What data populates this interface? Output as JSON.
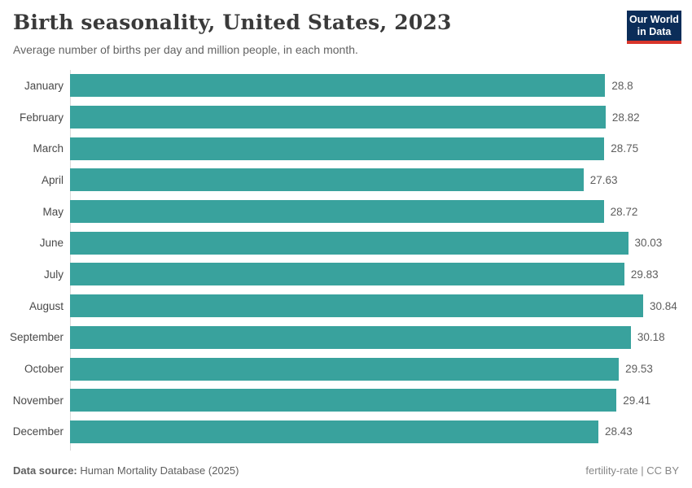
{
  "header": {
    "title": "Birth seasonality, United States, 2023",
    "subtitle": "Average number of births per day and million people, in each month.",
    "logo": {
      "line1": "Our World",
      "line2": "in Data"
    }
  },
  "chart_data": {
    "type": "bar",
    "orientation": "horizontal",
    "title": "Birth seasonality, United States, 2023",
    "subtitle": "Average number of births per day and million people, in each month.",
    "categories": [
      "January",
      "February",
      "March",
      "April",
      "May",
      "June",
      "July",
      "August",
      "September",
      "October",
      "November",
      "December"
    ],
    "values": [
      28.8,
      28.82,
      28.75,
      27.63,
      28.72,
      30.03,
      29.83,
      30.84,
      30.18,
      29.53,
      29.41,
      28.43
    ],
    "value_labels": [
      "28.8",
      "28.82",
      "28.75",
      "27.63",
      "28.72",
      "30.03",
      "29.83",
      "30.84",
      "30.18",
      "29.53",
      "29.41",
      "28.43"
    ],
    "xlabel": "",
    "ylabel": "",
    "xlim": [
      0,
      32.9
    ],
    "grid": false,
    "legend": false,
    "bar_color": "#39a29d",
    "axis_line_color": "#dadada"
  },
  "colors": {
    "bar": "#39a29d",
    "axis_line": "#dadada",
    "logo_navy": "#0b2d59",
    "logo_red": "#d8352b",
    "title_text": "#3a3a3a",
    "subtitle_text": "#636363"
  },
  "footer": {
    "source_label": "Data source:",
    "source_text": "Human Mortality Database (2025)",
    "note_right": "fertility-rate | CC BY"
  }
}
